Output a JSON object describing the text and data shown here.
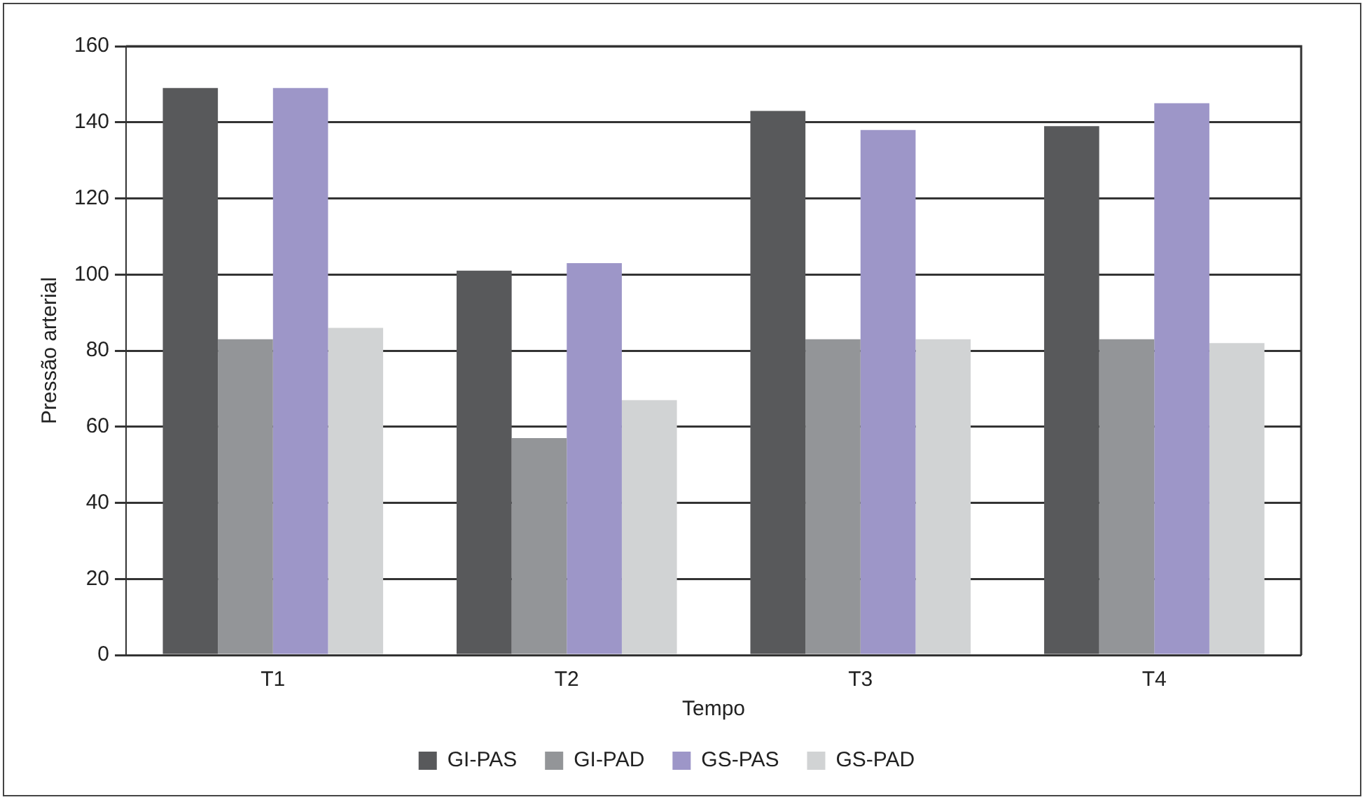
{
  "chart_data": {
    "type": "bar",
    "xlabel": "Tempo",
    "ylabel": "Pressão arterial",
    "categories": [
      "T1",
      "T2",
      "T3",
      "T4"
    ],
    "series": [
      {
        "name": "GI-PAS",
        "color": "#58595b",
        "values": [
          149,
          101,
          143,
          139
        ]
      },
      {
        "name": "GI-PAD",
        "color": "#939598",
        "values": [
          83,
          57,
          83,
          83
        ]
      },
      {
        "name": "GS-PAS",
        "color": "#9d96c8",
        "values": [
          149,
          103,
          138,
          145
        ]
      },
      {
        "name": "GS-PAD",
        "color": "#d1d3d4",
        "values": [
          86,
          67,
          83,
          82
        ]
      }
    ],
    "ylim": [
      0,
      160
    ],
    "yticks": [
      0,
      20,
      40,
      60,
      80,
      100,
      120,
      140,
      160
    ],
    "grid": "y",
    "legend": "bottom"
  }
}
